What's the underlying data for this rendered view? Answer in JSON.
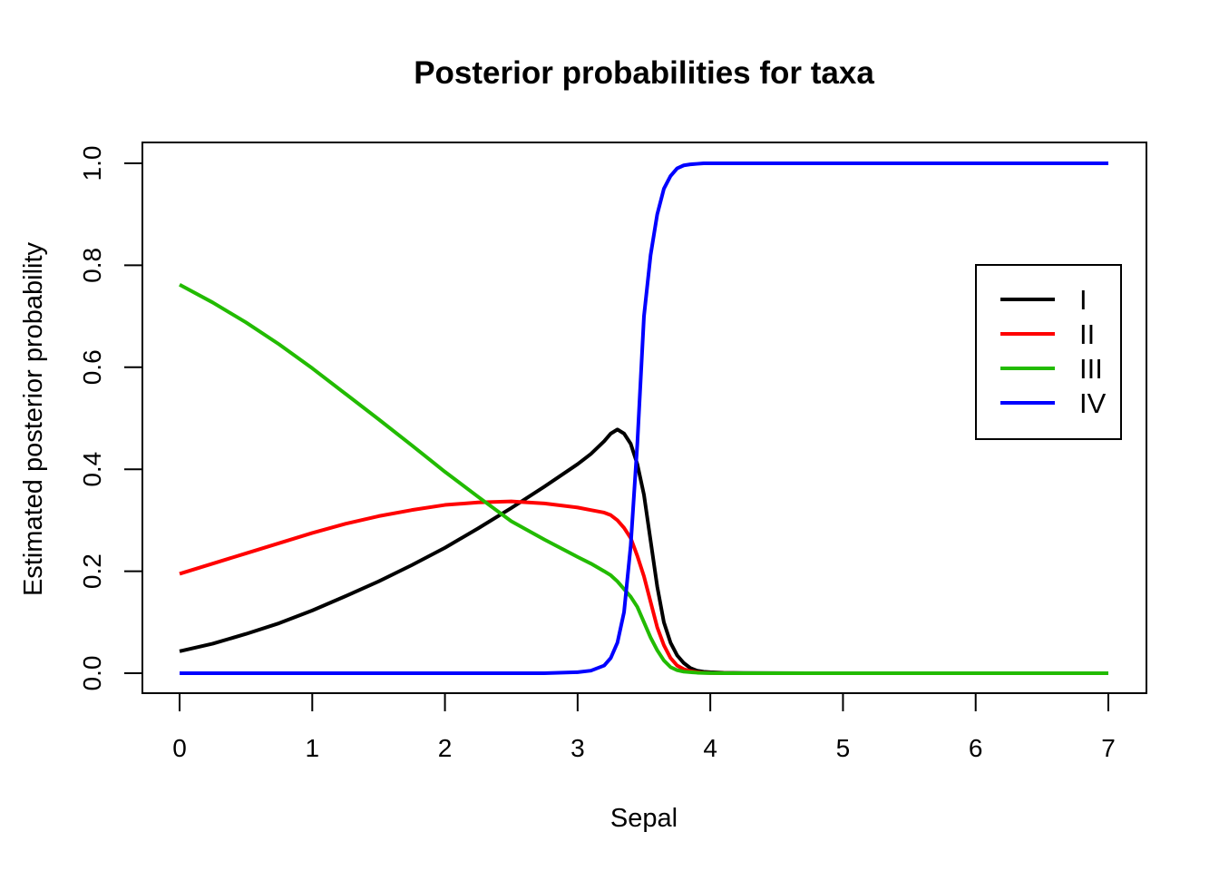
{
  "chart_data": {
    "type": "line",
    "title": "Posterior probabilities for taxa",
    "xlabel": "Sepal",
    "ylabel": "Estimated posterior probability",
    "xlim": [
      0,
      7
    ],
    "ylim": [
      0,
      1
    ],
    "x_ticks": [
      "0",
      "1",
      "2",
      "3",
      "4",
      "5",
      "6",
      "7"
    ],
    "y_ticks": [
      "0.0",
      "0.2",
      "0.4",
      "0.6",
      "0.8",
      "1.0"
    ],
    "grid": false,
    "legend_position": "right",
    "x": [
      0,
      0.25,
      0.5,
      0.75,
      1,
      1.25,
      1.5,
      1.75,
      2,
      2.25,
      2.5,
      2.75,
      3,
      3.1,
      3.2,
      3.25,
      3.3,
      3.35,
      3.4,
      3.45,
      3.5,
      3.55,
      3.6,
      3.65,
      3.7,
      3.75,
      3.8,
      3.85,
      3.9,
      3.95,
      4,
      4.1,
      4.25,
      4.5,
      5,
      6,
      7
    ],
    "series": [
      {
        "name": "I",
        "color": "#000000",
        "values": [
          0.043,
          0.058,
          0.077,
          0.098,
          0.123,
          0.151,
          0.18,
          0.212,
          0.246,
          0.284,
          0.324,
          0.366,
          0.41,
          0.43,
          0.455,
          0.47,
          0.478,
          0.47,
          0.45,
          0.41,
          0.35,
          0.26,
          0.17,
          0.1,
          0.06,
          0.035,
          0.02,
          0.01,
          0.005,
          0.003,
          0.002,
          0.001,
          0.0005,
          0.0002,
          0,
          0,
          0
        ]
      },
      {
        "name": "II",
        "color": "#ff0000",
        "values": [
          0.195,
          0.215,
          0.235,
          0.255,
          0.275,
          0.293,
          0.308,
          0.32,
          0.33,
          0.335,
          0.337,
          0.333,
          0.325,
          0.32,
          0.315,
          0.31,
          0.3,
          0.285,
          0.265,
          0.23,
          0.19,
          0.14,
          0.09,
          0.055,
          0.03,
          0.015,
          0.008,
          0.004,
          0.002,
          0.001,
          0.0005,
          0.0002,
          0,
          0,
          0,
          0,
          0
        ]
      },
      {
        "name": "III",
        "color": "#22bb00",
        "values": [
          0.762,
          0.727,
          0.688,
          0.645,
          0.598,
          0.548,
          0.498,
          0.447,
          0.395,
          0.346,
          0.298,
          0.262,
          0.228,
          0.215,
          0.2,
          0.192,
          0.18,
          0.165,
          0.15,
          0.13,
          0.1,
          0.07,
          0.045,
          0.025,
          0.012,
          0.006,
          0.003,
          0.002,
          0.001,
          0.0005,
          0.0002,
          0.0001,
          0,
          0,
          0,
          0,
          0
        ]
      },
      {
        "name": "IV",
        "color": "#0000ff",
        "values": [
          0,
          0,
          0,
          0,
          0,
          0,
          0,
          0,
          0,
          0,
          0,
          0,
          0.002,
          0.005,
          0.015,
          0.03,
          0.06,
          0.12,
          0.25,
          0.45,
          0.7,
          0.82,
          0.9,
          0.95,
          0.975,
          0.99,
          0.996,
          0.998,
          0.999,
          1,
          1,
          1,
          1,
          1,
          1,
          1,
          1
        ]
      }
    ]
  }
}
